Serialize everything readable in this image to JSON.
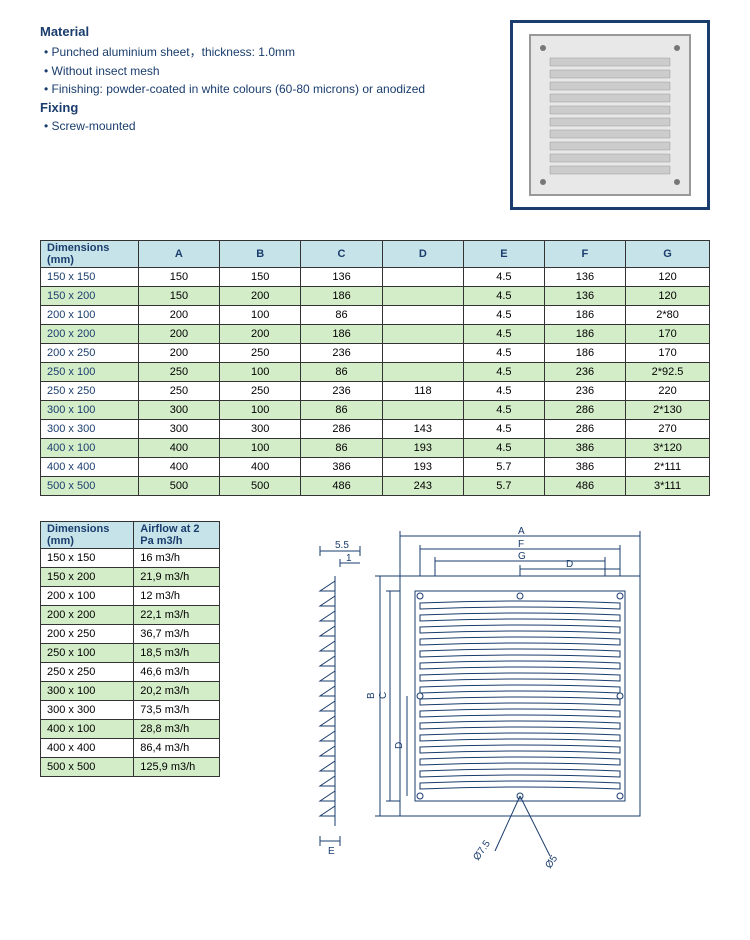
{
  "material_heading": "Material",
  "material_bullets": [
    "• Punched aluminium sheet，thickness: 1.0mm",
    "• Without insect mesh",
    "• Finishing: powder-coated in white colours (60-80 microns) or anodized"
  ],
  "fixing_heading": "Fixing",
  "fixing_bullets": [
    "• Screw-mounted"
  ],
  "dim_table": {
    "header_label": "Dimensions (mm)",
    "columns": [
      "A",
      "B",
      "C",
      "D",
      "E",
      "F",
      "G"
    ],
    "rows": [
      {
        "dim": "150 x 150",
        "vals": [
          "150",
          "150",
          "136",
          "",
          "4.5",
          "136",
          "120"
        ],
        "hl": false
      },
      {
        "dim": "150 x 200",
        "vals": [
          "150",
          "200",
          "186",
          "",
          "4.5",
          "136",
          "120"
        ],
        "hl": true
      },
      {
        "dim": "200 x 100",
        "vals": [
          "200",
          "100",
          "86",
          "",
          "4.5",
          "186",
          "2*80"
        ],
        "hl": false
      },
      {
        "dim": "200 x 200",
        "vals": [
          "200",
          "200",
          "186",
          "",
          "4.5",
          "186",
          "170"
        ],
        "hl": true
      },
      {
        "dim": "200 x 250",
        "vals": [
          "200",
          "250",
          "236",
          "",
          "4.5",
          "186",
          "170"
        ],
        "hl": false
      },
      {
        "dim": "250 x 100",
        "vals": [
          "250",
          "100",
          "86",
          "",
          "4.5",
          "236",
          "2*92.5"
        ],
        "hl": true
      },
      {
        "dim": "250 x 250",
        "vals": [
          "250",
          "250",
          "236",
          "118",
          "4.5",
          "236",
          "220"
        ],
        "hl": false
      },
      {
        "dim": "300 x 100",
        "vals": [
          "300",
          "100",
          "86",
          "",
          "4.5",
          "286",
          "2*130"
        ],
        "hl": true
      },
      {
        "dim": "300 x 300",
        "vals": [
          "300",
          "300",
          "286",
          "143",
          "4.5",
          "286",
          "270"
        ],
        "hl": false
      },
      {
        "dim": "400 x 100",
        "vals": [
          "400",
          "100",
          "86",
          "193",
          "4.5",
          "386",
          "3*120"
        ],
        "hl": true
      },
      {
        "dim": "400 x 400",
        "vals": [
          "400",
          "400",
          "386",
          "193",
          "5.7",
          "386",
          "2*111"
        ],
        "hl": false
      },
      {
        "dim": "500 x 500",
        "vals": [
          "500",
          "500",
          "486",
          "243",
          "5.7",
          "486",
          "3*111"
        ],
        "hl": true
      }
    ]
  },
  "airflow_table": {
    "headers": [
      "Dimensions (mm)",
      "Airflow at 2 Pa m3/h"
    ],
    "rows": [
      {
        "dim": "150 x 150",
        "val": "16 m3/h",
        "hl": false
      },
      {
        "dim": "150 x 200",
        "val": "21,9 m3/h",
        "hl": true
      },
      {
        "dim": "200 x 100",
        "val": "12 m3/h",
        "hl": false
      },
      {
        "dim": "200 x 200",
        "val": "22,1 m3/h",
        "hl": true
      },
      {
        "dim": "200 x 250",
        "val": "36,7 m3/h",
        "hl": false
      },
      {
        "dim": "250 x 100",
        "val": "18,5 m3/h",
        "hl": true
      },
      {
        "dim": "250 x 250",
        "val": "46,6 m3/h",
        "hl": false
      },
      {
        "dim": "300 x 100",
        "val": "20,2 m3/h",
        "hl": true
      },
      {
        "dim": "300 x 300",
        "val": "73,5 m3/h",
        "hl": false
      },
      {
        "dim": "400 x 100",
        "val": "28,8 m3/h",
        "hl": true
      },
      {
        "dim": "400 x 400",
        "val": "86,4 m3/h",
        "hl": false
      },
      {
        "dim": "500 x 500",
        "val": "125,9 m3/h",
        "hl": true
      }
    ]
  },
  "diagram_labels": {
    "A": "A",
    "B": "B",
    "C": "C",
    "D": "D",
    "E": "E",
    "F": "F",
    "G": "G",
    "d1": "5.5",
    "d2": "1",
    "phi1": "Ø7.5",
    "phi2": "Ø5"
  },
  "colors": {
    "brand": "#1a3d6d",
    "header_bg": "#c5e3e8",
    "highlight_bg": "#d4edc9"
  }
}
